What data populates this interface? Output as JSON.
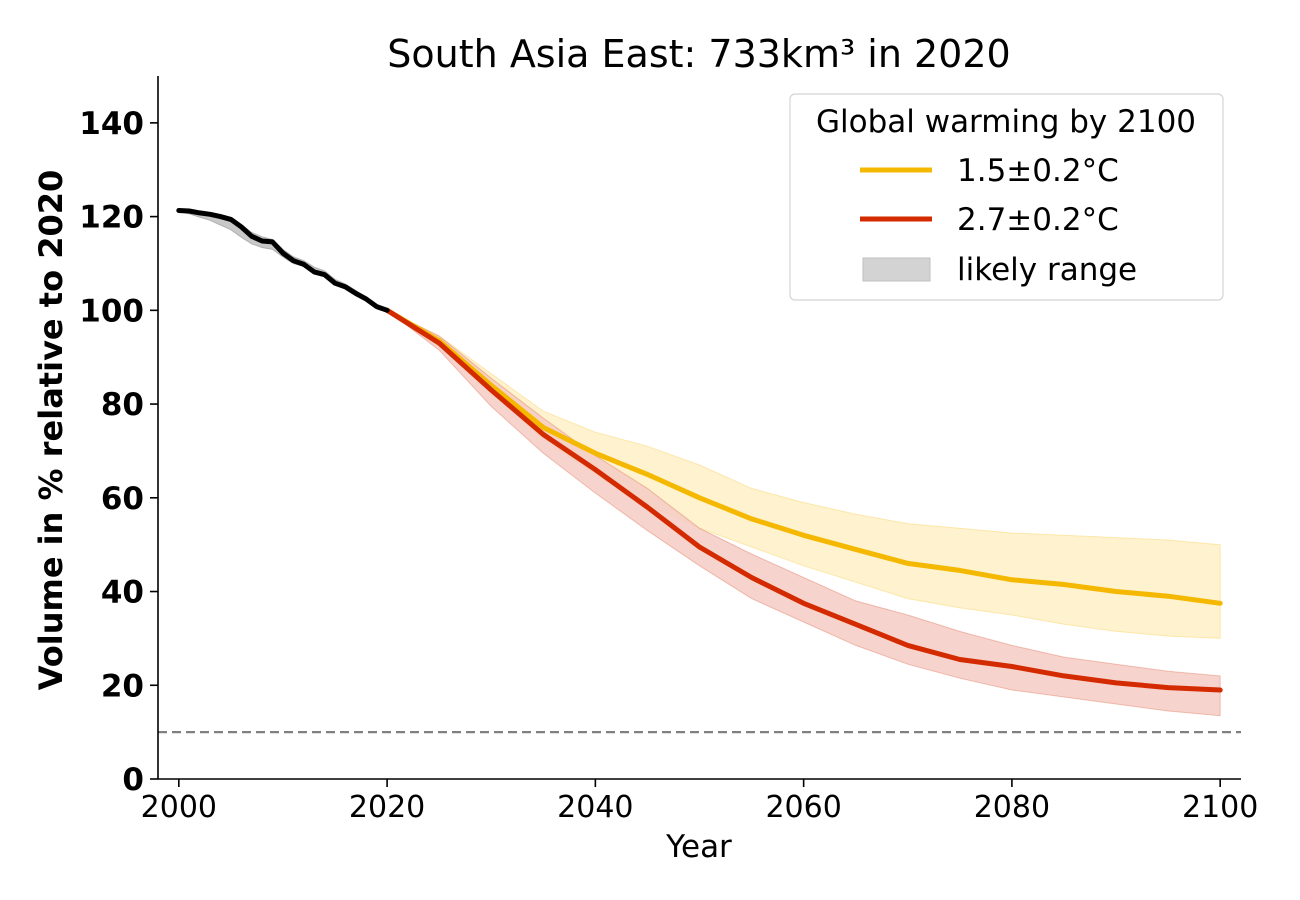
{
  "chart_data": {
    "type": "line",
    "title": "South Asia East: 733km³ in 2020",
    "xlabel": "Year",
    "ylabel": "Volume in % relative to 2020",
    "xlim": [
      1998,
      2102
    ],
    "ylim": [
      0,
      150
    ],
    "xticks": [
      "2000",
      "2020",
      "2040",
      "2060",
      "2080",
      "2100"
    ],
    "yticks": [
      "0",
      "20",
      "40",
      "60",
      "80",
      "100",
      "120",
      "140"
    ],
    "reference_line": {
      "y": 10,
      "style": "dashed",
      "color": "#808080"
    },
    "legend": {
      "title": "Global warming by 2100",
      "placement": "top-right",
      "entries": [
        "1.5±0.2°C",
        "2.7±0.2°C",
        "likely range"
      ]
    },
    "historical": {
      "color": "#000000",
      "band_color": "#b0b0b0",
      "x": [
        2000,
        2001,
        2002,
        2003,
        2004,
        2005,
        2006,
        2007,
        2008,
        2009,
        2010,
        2011,
        2012,
        2013,
        2014,
        2015,
        2016,
        2017,
        2018,
        2019,
        2020
      ],
      "y": [
        121.3,
        121.2,
        120.8,
        120.5,
        120.0,
        119.4,
        117.8,
        115.8,
        114.8,
        114.6,
        112.2,
        110.6,
        109.8,
        108.2,
        107.6,
        105.8,
        105.0,
        103.6,
        102.4,
        100.8,
        100.0
      ],
      "lower": [
        121.0,
        120.6,
        119.9,
        119.2,
        118.2,
        117.2,
        115.6,
        114.2,
        113.4,
        113.0,
        111.4,
        110.0,
        109.4,
        108.0,
        107.2,
        105.6,
        104.8,
        103.4,
        102.2,
        100.6,
        100.0
      ],
      "upper": [
        121.4,
        121.4,
        121.1,
        120.8,
        120.3,
        119.7,
        118.3,
        116.6,
        115.7,
        115.1,
        113.0,
        111.4,
        110.6,
        109.2,
        108.4,
        106.6,
        105.6,
        104.2,
        102.8,
        101.2,
        100.0
      ]
    },
    "series": [
      {
        "name": "1.5±0.2°C",
        "color": "#f5b800",
        "band_color": "#fff0c6",
        "x": [
          2020,
          2025,
          2030,
          2035,
          2040,
          2045,
          2050,
          2055,
          2060,
          2065,
          2070,
          2075,
          2080,
          2085,
          2090,
          2095,
          2100
        ],
        "y": [
          100.0,
          93.5,
          84.0,
          75.0,
          69.5,
          65.0,
          60.0,
          55.5,
          52.0,
          49.0,
          46.0,
          44.5,
          42.5,
          41.5,
          40.0,
          39.0,
          37.5
        ],
        "lower": [
          100.0,
          92.5,
          82.5,
          72.5,
          65.0,
          58.5,
          53.5,
          49.5,
          45.5,
          42.0,
          38.5,
          36.5,
          35.0,
          33.0,
          31.5,
          30.5,
          30.0
        ],
        "upper": [
          100.0,
          94.5,
          86.5,
          78.5,
          74.0,
          71.0,
          67.0,
          62.0,
          59.0,
          56.5,
          54.5,
          53.5,
          52.5,
          52.0,
          51.5,
          51.0,
          50.0
        ]
      },
      {
        "name": "2.7±0.2°C",
        "color": "#d42a00",
        "band_color": "#f5cbc4",
        "x": [
          2020,
          2025,
          2030,
          2035,
          2040,
          2045,
          2050,
          2055,
          2060,
          2065,
          2070,
          2075,
          2080,
          2085,
          2090,
          2095,
          2100
        ],
        "y": [
          100.0,
          93.0,
          83.0,
          73.5,
          66.0,
          58.0,
          49.5,
          43.0,
          37.5,
          33.0,
          28.5,
          25.5,
          24.0,
          22.0,
          20.5,
          19.5,
          19.0
        ],
        "lower": [
          100.0,
          91.5,
          79.5,
          69.5,
          61.0,
          53.0,
          45.5,
          38.5,
          33.5,
          28.5,
          24.5,
          21.5,
          19.0,
          17.5,
          16.0,
          14.5,
          13.5
        ],
        "upper": [
          100.0,
          94.5,
          85.5,
          77.0,
          69.0,
          62.0,
          53.5,
          48.0,
          43.0,
          38.0,
          35.0,
          31.5,
          28.5,
          26.0,
          24.5,
          23.0,
          22.0
        ]
      }
    ]
  }
}
